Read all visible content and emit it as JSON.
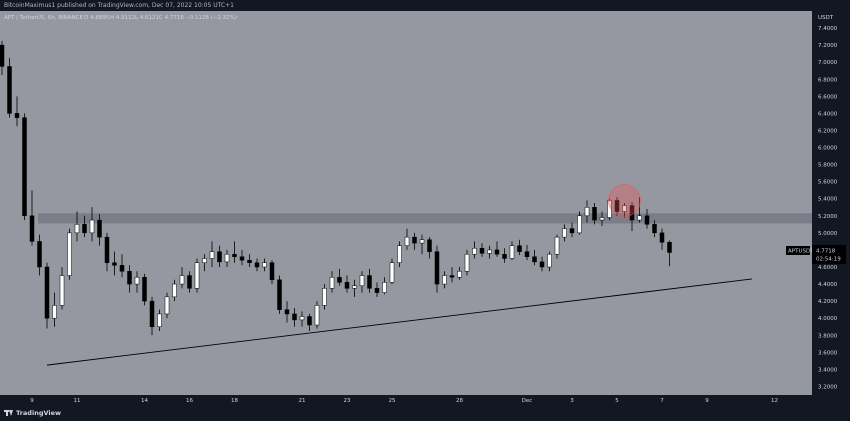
{
  "header": {
    "publisher": "BitcoinMaximus1 published on TradingView.com, Dec 07, 2022 10:05 UTC+1"
  },
  "branding": {
    "logo_text": "TradingView"
  },
  "colors": {
    "background": "#131722",
    "pane": "#9598a1",
    "up": "#ffffff",
    "down": "#000000",
    "zone": "#787b86",
    "circle": "#ef5350"
  },
  "chart_data": {
    "type": "candlestick",
    "symbol_line": {
      "name": "APT / TetherUS, 6h, BINANCE",
      "open": "O 4.8895",
      "high": "H 4.9112",
      "low": "L 4.6121",
      "close": "C 4.7718",
      "change": "−0.1128 (−2.32%)"
    },
    "currency": "USDT",
    "price_label": {
      "symbol": "APTUSDT",
      "price": "4.7718",
      "countdown": "02:54:19"
    },
    "y_axis": {
      "min": 3.1,
      "max": 7.6,
      "ticks": [
        "7.4000",
        "7.2000",
        "7.0000",
        "6.8000",
        "6.6000",
        "6.4000",
        "6.2000",
        "6.0000",
        "5.8000",
        "5.6000",
        "5.4000",
        "5.2000",
        "5.0000",
        "4.8000",
        "4.6000",
        "4.4000",
        "4.2000",
        "4.0000",
        "3.8000",
        "3.6000",
        "3.4000",
        "3.2000"
      ]
    },
    "x_axis": {
      "min": 0,
      "max": 108,
      "ticks": [
        {
          "label": "9",
          "x": 4
        },
        {
          "label": "11",
          "x": 10
        },
        {
          "label": "14",
          "x": 19
        },
        {
          "label": "16",
          "x": 25
        },
        {
          "label": "18",
          "x": 31
        },
        {
          "label": "21",
          "x": 40
        },
        {
          "label": "23",
          "x": 46
        },
        {
          "label": "25",
          "x": 52
        },
        {
          "label": "28",
          "x": 61
        },
        {
          "label": "Dec",
          "x": 70
        },
        {
          "label": "3",
          "x": 76
        },
        {
          "label": "5",
          "x": 82
        },
        {
          "label": "7",
          "x": 88
        },
        {
          "label": "9",
          "x": 94
        },
        {
          "label": "12",
          "x": 103
        }
      ]
    },
    "candles": [
      {
        "o": 7.2,
        "h": 7.25,
        "l": 6.85,
        "c": 6.95
      },
      {
        "o": 6.95,
        "h": 7.05,
        "l": 6.35,
        "c": 6.4
      },
      {
        "o": 6.4,
        "h": 6.6,
        "l": 6.25,
        "c": 6.35
      },
      {
        "o": 6.35,
        "h": 6.4,
        "l": 5.15,
        "c": 5.2
      },
      {
        "o": 5.2,
        "h": 5.5,
        "l": 4.85,
        "c": 4.9
      },
      {
        "o": 4.9,
        "h": 4.98,
        "l": 4.5,
        "c": 4.6
      },
      {
        "o": 4.6,
        "h": 4.65,
        "l": 3.88,
        "c": 4.0
      },
      {
        "o": 4.0,
        "h": 4.3,
        "l": 3.9,
        "c": 4.15
      },
      {
        "o": 4.15,
        "h": 4.6,
        "l": 4.1,
        "c": 4.5
      },
      {
        "o": 4.5,
        "h": 5.05,
        "l": 4.45,
        "c": 5.0
      },
      {
        "o": 5.0,
        "h": 5.25,
        "l": 4.9,
        "c": 5.1
      },
      {
        "o": 5.1,
        "h": 5.2,
        "l": 4.95,
        "c": 5.0
      },
      {
        "o": 5.0,
        "h": 5.3,
        "l": 4.9,
        "c": 5.15
      },
      {
        "o": 5.15,
        "h": 5.22,
        "l": 4.85,
        "c": 4.95
      },
      {
        "o": 4.95,
        "h": 5.0,
        "l": 4.55,
        "c": 4.65
      },
      {
        "o": 4.65,
        "h": 4.78,
        "l": 4.5,
        "c": 4.62
      },
      {
        "o": 4.62,
        "h": 4.75,
        "l": 4.48,
        "c": 4.55
      },
      {
        "o": 4.55,
        "h": 4.62,
        "l": 4.3,
        "c": 4.4
      },
      {
        "o": 4.4,
        "h": 4.55,
        "l": 4.3,
        "c": 4.48
      },
      {
        "o": 4.48,
        "h": 4.52,
        "l": 4.15,
        "c": 4.2
      },
      {
        "o": 4.2,
        "h": 4.25,
        "l": 3.8,
        "c": 3.9
      },
      {
        "o": 3.9,
        "h": 4.1,
        "l": 3.85,
        "c": 4.05
      },
      {
        "o": 4.05,
        "h": 4.3,
        "l": 4.0,
        "c": 4.25
      },
      {
        "o": 4.25,
        "h": 4.45,
        "l": 4.2,
        "c": 4.4
      },
      {
        "o": 4.4,
        "h": 4.6,
        "l": 4.35,
        "c": 4.5
      },
      {
        "o": 4.5,
        "h": 4.55,
        "l": 4.3,
        "c": 4.35
      },
      {
        "o": 4.35,
        "h": 4.7,
        "l": 4.3,
        "c": 4.65
      },
      {
        "o": 4.65,
        "h": 4.75,
        "l": 4.55,
        "c": 4.7
      },
      {
        "o": 4.7,
        "h": 4.9,
        "l": 4.6,
        "c": 4.78
      },
      {
        "o": 4.78,
        "h": 4.85,
        "l": 4.6,
        "c": 4.66
      },
      {
        "o": 4.66,
        "h": 4.8,
        "l": 4.6,
        "c": 4.75
      },
      {
        "o": 4.75,
        "h": 4.9,
        "l": 4.65,
        "c": 4.72
      },
      {
        "o": 4.72,
        "h": 4.8,
        "l": 4.62,
        "c": 4.68
      },
      {
        "o": 4.68,
        "h": 4.75,
        "l": 4.6,
        "c": 4.65
      },
      {
        "o": 4.65,
        "h": 4.7,
        "l": 4.55,
        "c": 4.6
      },
      {
        "o": 4.6,
        "h": 4.7,
        "l": 4.55,
        "c": 4.65
      },
      {
        "o": 4.65,
        "h": 4.68,
        "l": 4.4,
        "c": 4.45
      },
      {
        "o": 4.45,
        "h": 4.5,
        "l": 4.05,
        "c": 4.1
      },
      {
        "o": 4.1,
        "h": 4.2,
        "l": 3.95,
        "c": 4.05
      },
      {
        "o": 4.05,
        "h": 4.12,
        "l": 3.9,
        "c": 3.98
      },
      {
        "o": 3.98,
        "h": 4.08,
        "l": 3.9,
        "c": 4.02
      },
      {
        "o": 4.02,
        "h": 4.05,
        "l": 3.85,
        "c": 3.92
      },
      {
        "o": 3.92,
        "h": 4.2,
        "l": 3.88,
        "c": 4.15
      },
      {
        "o": 4.15,
        "h": 4.4,
        "l": 4.1,
        "c": 4.35
      },
      {
        "o": 4.35,
        "h": 4.55,
        "l": 4.3,
        "c": 4.48
      },
      {
        "o": 4.48,
        "h": 4.58,
        "l": 4.38,
        "c": 4.42
      },
      {
        "o": 4.42,
        "h": 4.5,
        "l": 4.3,
        "c": 4.35
      },
      {
        "o": 4.35,
        "h": 4.45,
        "l": 4.25,
        "c": 4.38
      },
      {
        "o": 4.38,
        "h": 4.55,
        "l": 4.3,
        "c": 4.5
      },
      {
        "o": 4.5,
        "h": 4.58,
        "l": 4.3,
        "c": 4.35
      },
      {
        "o": 4.35,
        "h": 4.42,
        "l": 4.25,
        "c": 4.3
      },
      {
        "o": 4.3,
        "h": 4.48,
        "l": 4.28,
        "c": 4.42
      },
      {
        "o": 4.42,
        "h": 4.7,
        "l": 4.4,
        "c": 4.65
      },
      {
        "o": 4.65,
        "h": 4.9,
        "l": 4.6,
        "c": 4.85
      },
      {
        "o": 4.85,
        "h": 5.05,
        "l": 4.8,
        "c": 4.95
      },
      {
        "o": 4.95,
        "h": 5.0,
        "l": 4.8,
        "c": 4.88
      },
      {
        "o": 4.88,
        "h": 4.98,
        "l": 4.75,
        "c": 4.92
      },
      {
        "o": 4.92,
        "h": 4.95,
        "l": 4.7,
        "c": 4.78
      },
      {
        "o": 4.78,
        "h": 4.85,
        "l": 4.3,
        "c": 4.4
      },
      {
        "o": 4.4,
        "h": 4.55,
        "l": 4.35,
        "c": 4.5
      },
      {
        "o": 4.5,
        "h": 4.6,
        "l": 4.42,
        "c": 4.48
      },
      {
        "o": 4.48,
        "h": 4.6,
        "l": 4.45,
        "c": 4.55
      },
      {
        "o": 4.55,
        "h": 4.8,
        "l": 4.5,
        "c": 4.75
      },
      {
        "o": 4.75,
        "h": 4.9,
        "l": 4.7,
        "c": 4.82
      },
      {
        "o": 4.82,
        "h": 4.88,
        "l": 4.72,
        "c": 4.76
      },
      {
        "o": 4.76,
        "h": 4.85,
        "l": 4.7,
        "c": 4.8
      },
      {
        "o": 4.8,
        "h": 4.9,
        "l": 4.72,
        "c": 4.75
      },
      {
        "o": 4.75,
        "h": 4.82,
        "l": 4.65,
        "c": 4.7
      },
      {
        "o": 4.7,
        "h": 4.9,
        "l": 4.68,
        "c": 4.85
      },
      {
        "o": 4.85,
        "h": 4.92,
        "l": 4.74,
        "c": 4.78
      },
      {
        "o": 4.78,
        "h": 4.86,
        "l": 4.68,
        "c": 4.72
      },
      {
        "o": 4.72,
        "h": 4.8,
        "l": 4.62,
        "c": 4.66
      },
      {
        "o": 4.66,
        "h": 4.72,
        "l": 4.55,
        "c": 4.6
      },
      {
        "o": 4.6,
        "h": 4.78,
        "l": 4.55,
        "c": 4.75
      },
      {
        "o": 4.75,
        "h": 4.98,
        "l": 4.7,
        "c": 4.95
      },
      {
        "o": 4.95,
        "h": 5.1,
        "l": 4.9,
        "c": 5.05
      },
      {
        "o": 5.05,
        "h": 5.12,
        "l": 4.95,
        "c": 5.0
      },
      {
        "o": 5.0,
        "h": 5.25,
        "l": 4.98,
        "c": 5.2
      },
      {
        "o": 5.2,
        "h": 5.38,
        "l": 5.12,
        "c": 5.3
      },
      {
        "o": 5.3,
        "h": 5.35,
        "l": 5.1,
        "c": 5.15
      },
      {
        "o": 5.15,
        "h": 5.25,
        "l": 5.08,
        "c": 5.18
      },
      {
        "o": 5.18,
        "h": 5.4,
        "l": 5.15,
        "c": 5.38
      },
      {
        "o": 5.38,
        "h": 5.42,
        "l": 5.2,
        "c": 5.25
      },
      {
        "o": 5.25,
        "h": 5.35,
        "l": 5.18,
        "c": 5.32
      },
      {
        "o": 5.32,
        "h": 5.36,
        "l": 5.02,
        "c": 5.15
      },
      {
        "o": 5.15,
        "h": 5.42,
        "l": 5.12,
        "c": 5.2
      },
      {
        "o": 5.2,
        "h": 5.28,
        "l": 5.05,
        "c": 5.1
      },
      {
        "o": 5.1,
        "h": 5.15,
        "l": 4.95,
        "c": 5.0
      },
      {
        "o": 5.0,
        "h": 5.05,
        "l": 4.8,
        "c": 4.89
      },
      {
        "o": 4.89,
        "h": 4.91,
        "l": 4.61,
        "c": 4.77
      }
    ],
    "resistance_zone": {
      "low": 5.11,
      "high": 5.23
    },
    "support_line": {
      "x1": 6,
      "y1": 3.45,
      "x2": 100,
      "y2": 4.46
    },
    "highlight_circle": {
      "x": 83,
      "y": 5.38
    }
  }
}
